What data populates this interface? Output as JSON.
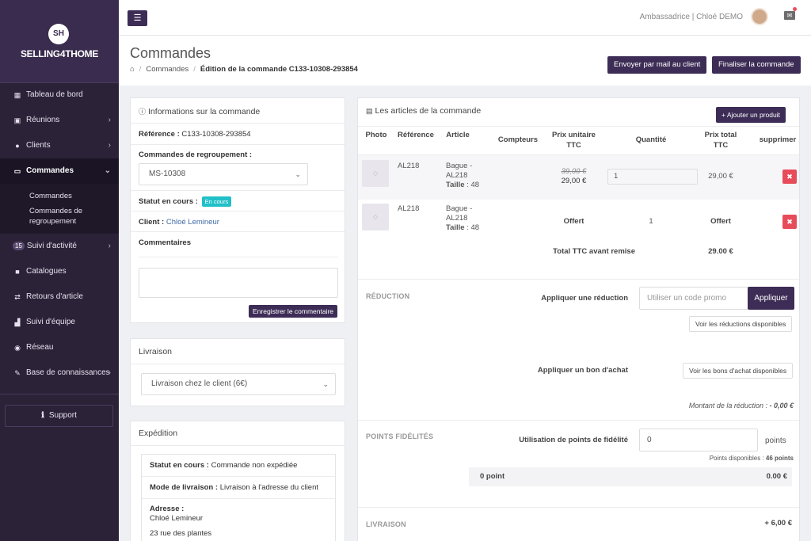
{
  "sidebar": {
    "logo_initials": "SH",
    "logo_text": "SELLING4THOME",
    "items": [
      {
        "icon": "▦",
        "label": "Tableau de bord",
        "chevron": false,
        "badge": ""
      },
      {
        "icon": "▣",
        "label": "Réunions",
        "chevron": true,
        "badge": ""
      },
      {
        "icon": "●",
        "label": "Clients",
        "chevron": true,
        "badge": ""
      },
      {
        "icon": "▭",
        "label": "Commandes",
        "chevron": true,
        "badge": "",
        "active": true
      },
      {
        "icon": "",
        "label": "Suivi d'activité",
        "chevron": true,
        "badge": "15"
      },
      {
        "icon": "■",
        "label": "Catalogues",
        "chevron": false,
        "badge": ""
      },
      {
        "icon": "⇄",
        "label": "Retours d'article",
        "chevron": false,
        "badge": ""
      },
      {
        "icon": "▟",
        "label": "Suivi d'équipe",
        "chevron": false,
        "badge": ""
      },
      {
        "icon": "◉",
        "label": "Réseau",
        "chevron": false,
        "badge": ""
      },
      {
        "icon": "✎",
        "label": "Base de connaissances",
        "chevron": true,
        "badge": ""
      }
    ],
    "subitems": [
      "Commandes",
      "Commandes de regroupement"
    ],
    "support_label": "Support"
  },
  "topbar": {
    "user_text": "Ambassadrice | Chloé DEMO"
  },
  "header": {
    "title": "Commandes",
    "breadcrumb": [
      "Commandes",
      "Édition de la commande C133-10308-293854"
    ],
    "btn_email": "Envoyer par mail au client",
    "btn_finalize": "Finaliser la commande"
  },
  "info": {
    "title": "Informations sur la commande",
    "reference_label": "Référence :",
    "reference_value": "C133-10308-293854",
    "regroupement_label": "Commandes de regroupement :",
    "regroupement_value": "MS-10308",
    "statut_label": "Statut en cours :",
    "statut_badge": "En cours",
    "client_label": "Client :",
    "client_value": "Chloé Lemineur",
    "comments_label": "Commentaires",
    "save_comment_btn": "Enregistrer le commentaire"
  },
  "livraison": {
    "title": "Livraison",
    "selected": "Livraison chez le client (6€)"
  },
  "expedition": {
    "title": "Expédition",
    "statut_label": "Statut en cours :",
    "statut_value": "Commande non expédiée",
    "mode_label": "Mode de livraison :",
    "mode_value": "Livraison à l'adresse du client",
    "adresse_label": "Adresse :",
    "adresse_name": "Chloé Lemineur",
    "adresse_street": "23 rue des plantes"
  },
  "articles": {
    "title": "Les articles de la commande",
    "add_btn": "+ Ajouter un produit",
    "columns": [
      "Photo",
      "Référence",
      "Article",
      "Compteurs",
      "Prix unitaire TTC",
      "Quantité",
      "Prix total TTC",
      "supprimer"
    ],
    "rows": [
      {
        "ref": "AL218",
        "article": "Bague - AL218",
        "taille_label": "Taille",
        "taille": ": 48",
        "old_price": "39,00 €",
        "unit_price": "29,00 €",
        "qty": "1",
        "total": "29,00 €"
      },
      {
        "ref": "AL218",
        "article": "Bague - AL218",
        "taille_label": "Taille",
        "taille": ": 48",
        "unit_price": "Offert",
        "qty": "1",
        "total": "Offert"
      }
    ],
    "total_label": "Total TTC avant remise",
    "total_value": "29.00 €"
  },
  "reduction": {
    "section": "RÉDUCTION",
    "apply_label": "Appliquer une réduction",
    "promo_placeholder": "Utiliser un code promo",
    "apply_btn": "Appliquer",
    "see_reductions": "Voir les réductions disponibles",
    "voucher_label": "Appliquer un bon d'achat",
    "see_vouchers": "Voir les bons d'achat disponibles",
    "montant_label": "Montant de la réduction :",
    "montant_value": "- 0,00 €"
  },
  "fidelite": {
    "section": "POINTS FIDÉLITÉS",
    "use_label": "Utilisation de points de fidélité",
    "points_value": "0",
    "points_unit": "points",
    "available_label": "Points disponibles :",
    "available_value": "46 points",
    "summary_points": "0 point",
    "summary_amount": "0.00 €"
  },
  "livraison_summary": {
    "section": "LIVRAISON",
    "amount": "+ 6,00 €"
  }
}
